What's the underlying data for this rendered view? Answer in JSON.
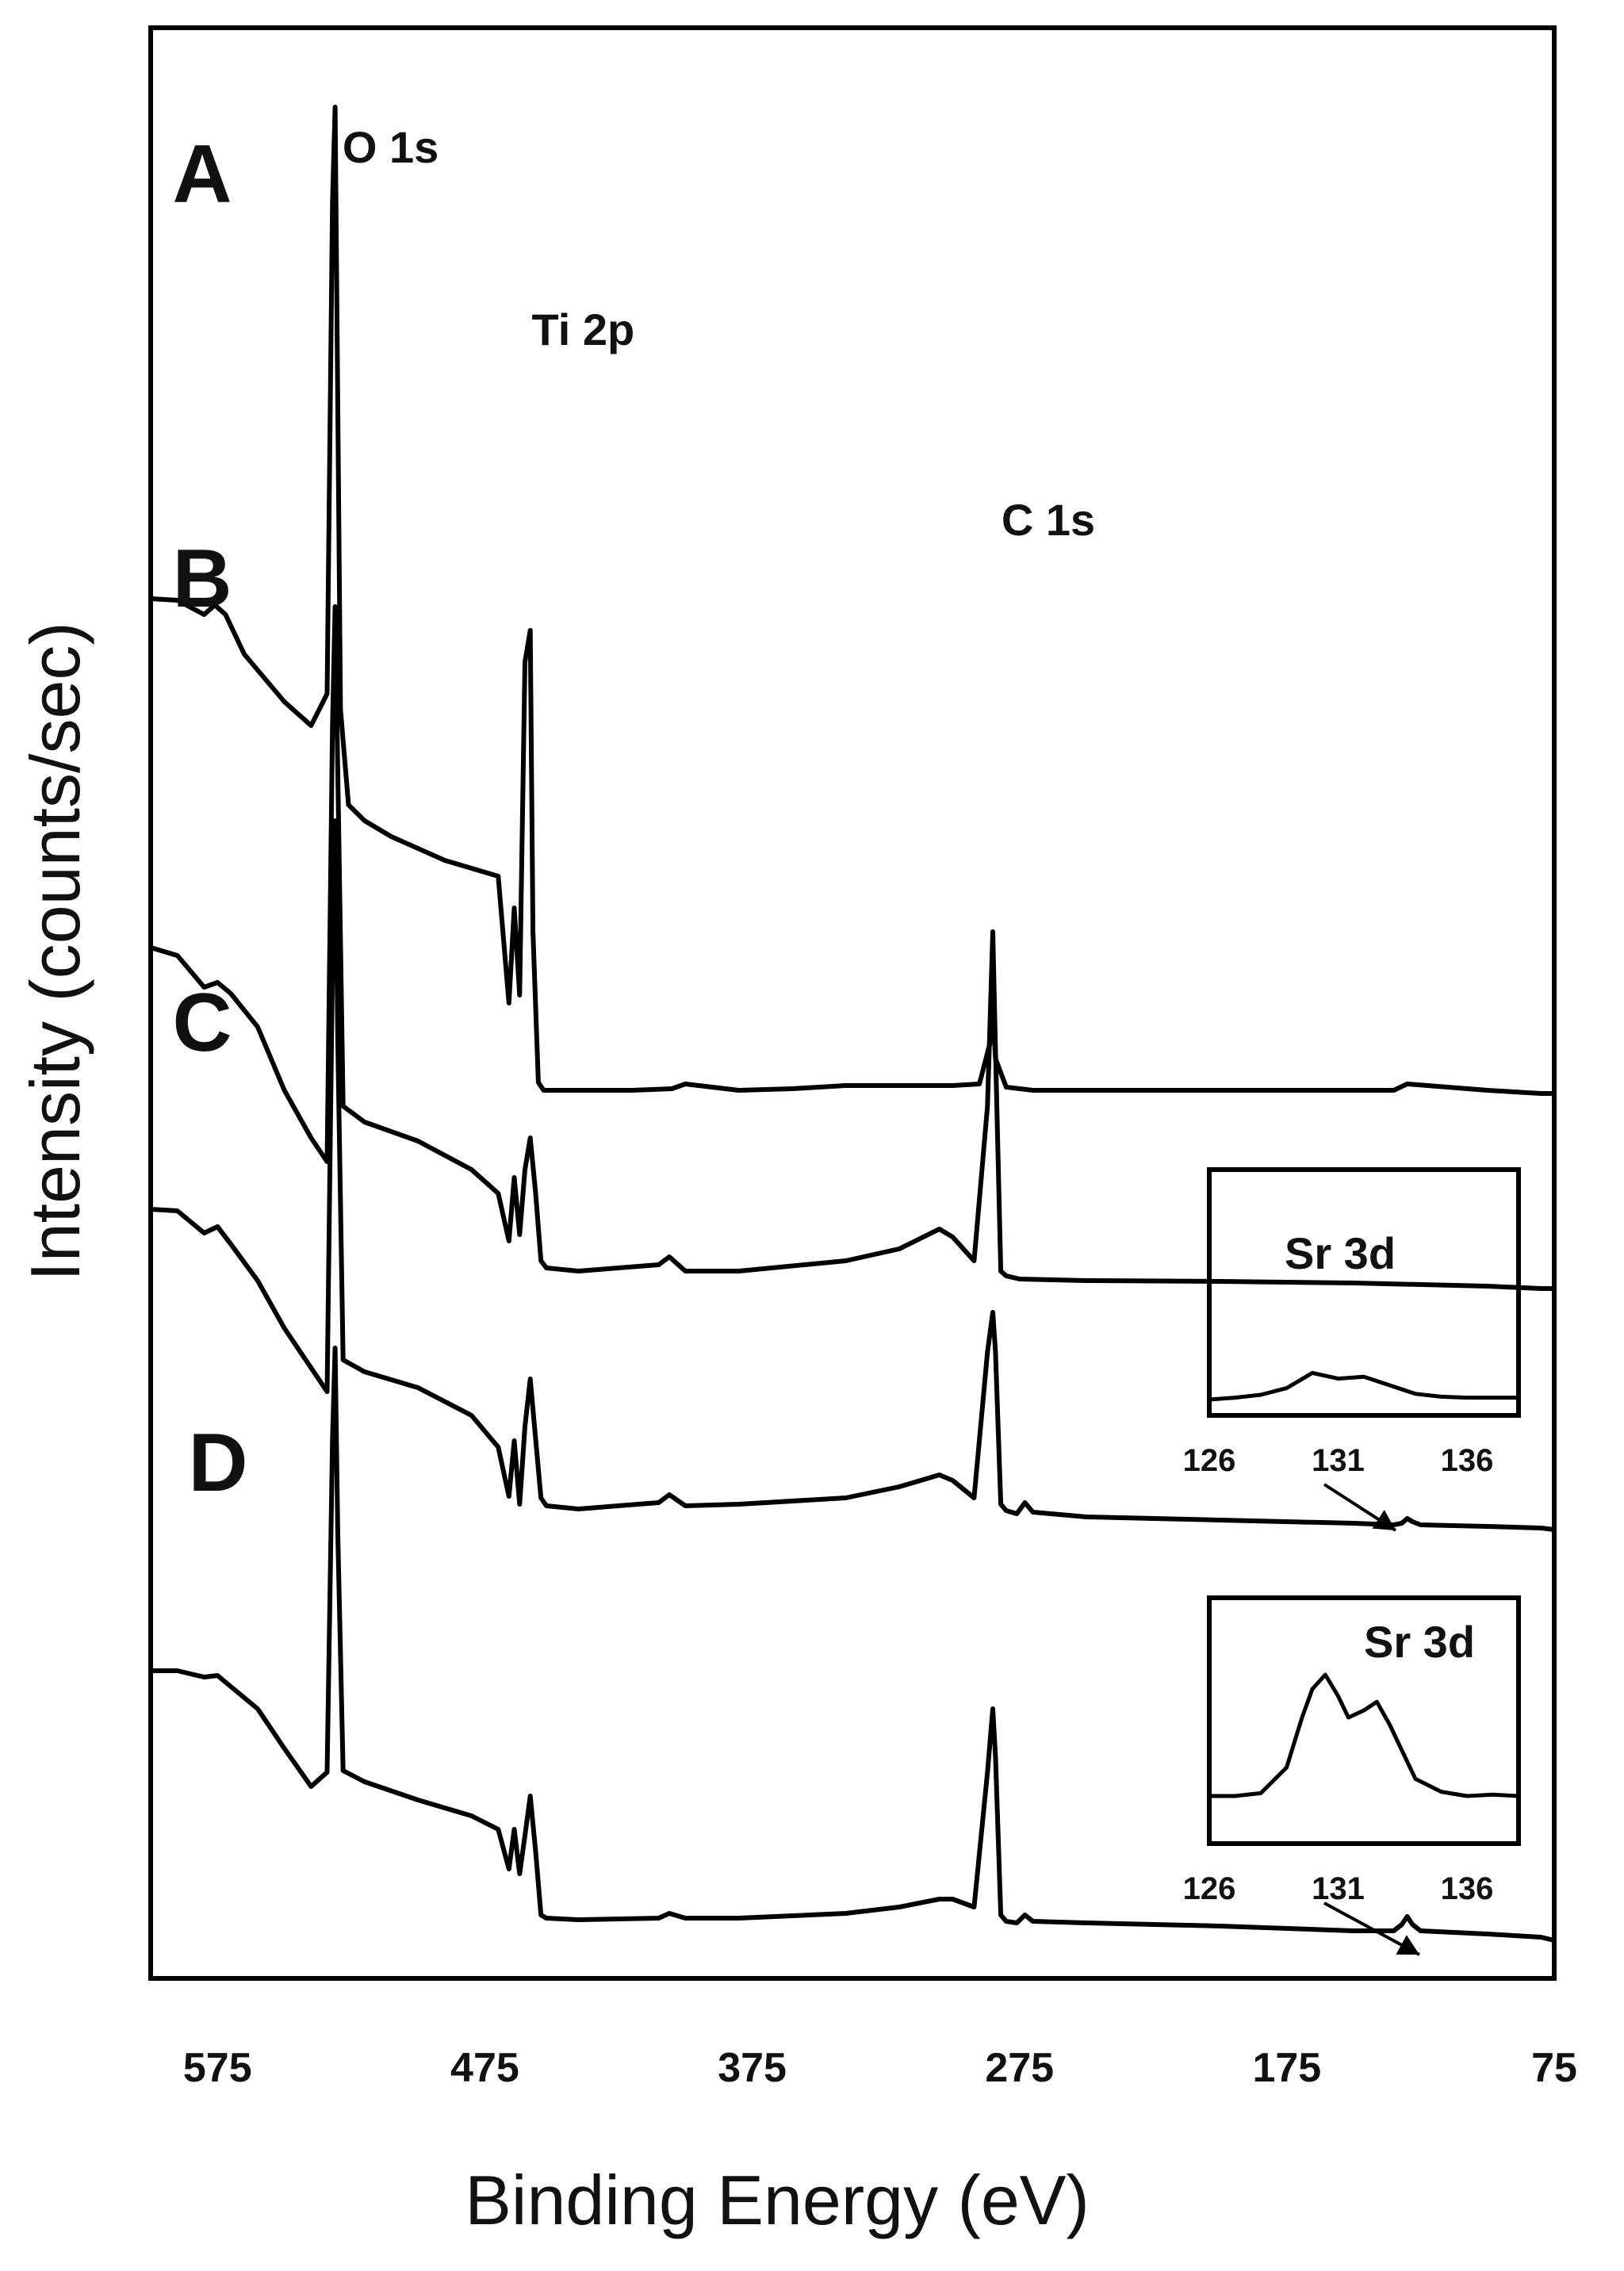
{
  "chart_data": {
    "type": "line",
    "title": "",
    "xlabel": "Binding Energy (eV)",
    "ylabel": "Intensity (counts/sec)",
    "xlim": [
      600,
      75
    ],
    "x_reversed": true,
    "x_ticks": [
      "575",
      "475",
      "375",
      "275",
      "175",
      "75"
    ],
    "y_ticks_shown": false,
    "grid": false,
    "peak_labels": [
      {
        "text": "O 1s",
        "x": 531
      },
      {
        "text": "Ti 2p",
        "x": 459
      },
      {
        "text": "C 1s",
        "x": 285
      }
    ],
    "series": [
      {
        "name": "A",
        "x": [
          600,
          590,
          580,
          576,
          572,
          565,
          550,
          540,
          534,
          532,
          531,
          529,
          526,
          520,
          510,
          490,
          470,
          466,
          464,
          462,
          460,
          458,
          457,
          455,
          453,
          440,
          420,
          405,
          400,
          380,
          360,
          340,
          320,
          300,
          290,
          286,
          285,
          284,
          280,
          270,
          250,
          220,
          200,
          150,
          135,
          130,
          100,
          80,
          75
        ],
        "y": [
          1720,
          1718,
          1700,
          1712,
          1700,
          1650,
          1590,
          1560,
          1600,
          2220,
          2340,
          1580,
          1460,
          1440,
          1420,
          1390,
          1370,
          1210,
          1330,
          1220,
          1640,
          1680,
          1300,
          1110,
          1100,
          1100,
          1100,
          1102,
          1108,
          1100,
          1102,
          1106,
          1106,
          1106,
          1108,
          1160,
          1200,
          1140,
          1104,
          1100,
          1100,
          1100,
          1100,
          1100,
          1100,
          1108,
          1100,
          1096,
          1096
        ]
      },
      {
        "name": "B",
        "x": [
          600,
          590,
          580,
          575,
          570,
          560,
          550,
          540,
          534,
          532,
          531,
          530,
          528,
          520,
          500,
          480,
          470,
          466,
          464,
          462,
          460,
          458,
          456,
          454,
          452,
          440,
          410,
          406,
          400,
          380,
          340,
          320,
          305,
          300,
          292,
          287,
          285,
          284,
          282,
          280,
          275,
          250,
          200,
          150,
          100,
          80,
          75
        ],
        "y": [
          1280,
          1270,
          1230,
          1236,
          1222,
          1180,
          1100,
          1040,
          1010,
          1560,
          1710,
          1500,
          1080,
          1060,
          1036,
          1000,
          970,
          910,
          990,
          918,
          1000,
          1040,
          970,
          885,
          876,
          872,
          880,
          890,
          872,
          872,
          885,
          900,
          925,
          915,
          885,
          1080,
          1300,
          1150,
          872,
          866,
          862,
          860,
          859,
          857,
          853,
          850,
          850
        ]
      },
      {
        "name": "C",
        "x": [
          600,
          590,
          580,
          575,
          570,
          560,
          550,
          540,
          534,
          532,
          531,
          530,
          528,
          520,
          500,
          480,
          470,
          466,
          464,
          462,
          460,
          458,
          456,
          454,
          452,
          440,
          410,
          406,
          400,
          380,
          340,
          320,
          305,
          300,
          292,
          287,
          285,
          284,
          282,
          280,
          276,
          273,
          270,
          250,
          200,
          150,
          135,
          132,
          130,
          128,
          125,
          100,
          80,
          75
        ],
        "y": [
          950,
          948,
          920,
          928,
          906,
          860,
          800,
          750,
          720,
          1260,
          1440,
          1160,
          760,
          745,
          725,
          690,
          650,
          588,
          658,
          578,
          676,
          736,
          660,
          586,
          576,
          572,
          580,
          590,
          576,
          578,
          586,
          600,
          615,
          608,
          586,
          770,
          820,
          770,
          578,
          570,
          566,
          580,
          568,
          562,
          558,
          554,
          552,
          554,
          560,
          556,
          552,
          550,
          548,
          546
        ]
      },
      {
        "name": "D",
        "x": [
          600,
          590,
          580,
          575,
          570,
          560,
          550,
          540,
          534,
          532,
          531,
          530,
          528,
          520,
          500,
          480,
          470,
          466,
          464,
          462,
          460,
          458,
          456,
          454,
          452,
          440,
          410,
          406,
          400,
          380,
          340,
          320,
          305,
          300,
          292,
          287,
          285,
          284,
          282,
          280,
          276,
          273,
          270,
          250,
          200,
          150,
          135,
          132,
          130,
          128,
          125,
          100,
          80,
          75
        ],
        "y": [
          368,
          368,
          360,
          362,
          348,
          320,
          270,
          222,
          240,
          660,
          775,
          540,
          242,
          228,
          205,
          185,
          168,
          118,
          168,
          112,
          160,
          210,
          140,
          60,
          56,
          54,
          56,
          62,
          56,
          56,
          62,
          70,
          80,
          80,
          70,
          240,
          320,
          260,
          60,
          52,
          50,
          60,
          52,
          50,
          46,
          40,
          40,
          48,
          58,
          48,
          40,
          36,
          32,
          28
        ]
      }
    ],
    "panel_labels": [
      "A",
      "B",
      "C",
      "D"
    ],
    "insets": [
      {
        "title": "Sr 3d",
        "attached_to": "C",
        "x_ticks": [
          "126",
          "131",
          "136"
        ],
        "xlim": [
          126,
          138
        ],
        "x": [
          126,
          127,
          128,
          129,
          130,
          131,
          132,
          133,
          134,
          135,
          136,
          137,
          138
        ],
        "y": [
          0.0,
          0.02,
          0.05,
          0.12,
          0.28,
          0.22,
          0.24,
          0.15,
          0.06,
          0.03,
          0.02,
          0.02,
          0.02
        ],
        "y_range": [
          0,
          1
        ]
      },
      {
        "title": "Sr 3d",
        "attached_to": "D",
        "x_ticks": [
          "126",
          "131",
          "136"
        ],
        "xlim": [
          126,
          138
        ],
        "x": [
          126,
          127,
          128,
          129,
          129.6,
          130,
          130.5,
          131,
          131.4,
          132,
          132.5,
          133,
          134,
          135,
          136,
          137,
          138
        ],
        "y": [
          0.0,
          0.0,
          0.02,
          0.2,
          0.55,
          0.75,
          0.85,
          0.7,
          0.55,
          0.6,
          0.66,
          0.5,
          0.12,
          0.03,
          0.0,
          0.01,
          0.0
        ],
        "y_range": [
          0,
          1
        ]
      }
    ]
  }
}
